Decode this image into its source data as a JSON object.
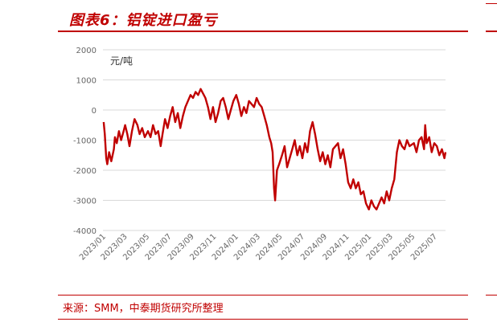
{
  "header": {
    "title": "图表6：铝锭进口盈亏"
  },
  "footer": {
    "source": "来源：SMM，中泰期货研究所整理"
  },
  "chart_data": {
    "type": "line",
    "title": "图表6：铝锭进口盈亏",
    "ylabel": "元/吨",
    "xlabel": "",
    "ylim": [
      -4000,
      2000
    ],
    "yticks": [
      2000,
      1000,
      0,
      -1000,
      -2000,
      -3000,
      -4000
    ],
    "xlim": [
      "2023-01",
      "2025-08"
    ],
    "xtick_labels": [
      "2023/01",
      "2023/03",
      "2023/05",
      "2023/07",
      "2023/09",
      "2023/11",
      "2024/01",
      "2024/03",
      "2024/05",
      "2024/07",
      "2024/09",
      "2024/11",
      "2025/01",
      "2025/03",
      "2025/05",
      "2025/07"
    ],
    "grid": "horizontal",
    "legend": "none",
    "color": "#c00000",
    "series": [
      {
        "values": [
          {
            "x": "2023-01-03",
            "y": -400
          },
          {
            "x": "2023-01-06",
            "y": -800
          },
          {
            "x": "2023-01-10",
            "y": -1600
          },
          {
            "x": "2023-01-13",
            "y": -1800
          },
          {
            "x": "2023-01-18",
            "y": -1400
          },
          {
            "x": "2023-01-24",
            "y": -1700
          },
          {
            "x": "2023-01-31",
            "y": -1300
          },
          {
            "x": "2023-02-03",
            "y": -900
          },
          {
            "x": "2023-02-08",
            "y": -1100
          },
          {
            "x": "2023-02-14",
            "y": -700
          },
          {
            "x": "2023-02-20",
            "y": -1000
          },
          {
            "x": "2023-02-27",
            "y": -700
          },
          {
            "x": "2023-03-03",
            "y": -500
          },
          {
            "x": "2023-03-09",
            "y": -800
          },
          {
            "x": "2023-03-15",
            "y": -1200
          },
          {
            "x": "2023-03-22",
            "y": -700
          },
          {
            "x": "2023-03-29",
            "y": -300
          },
          {
            "x": "2023-04-06",
            "y": -500
          },
          {
            "x": "2023-04-12",
            "y": -800
          },
          {
            "x": "2023-04-19",
            "y": -600
          },
          {
            "x": "2023-04-26",
            "y": -900
          },
          {
            "x": "2023-05-05",
            "y": -700
          },
          {
            "x": "2023-05-12",
            "y": -900
          },
          {
            "x": "2023-05-19",
            "y": -500
          },
          {
            "x": "2023-05-26",
            "y": -800
          },
          {
            "x": "2023-06-02",
            "y": -700
          },
          {
            "x": "2023-06-09",
            "y": -1200
          },
          {
            "x": "2023-06-14",
            "y": -800
          },
          {
            "x": "2023-06-21",
            "y": -300
          },
          {
            "x": "2023-06-28",
            "y": -600
          },
          {
            "x": "2023-07-05",
            "y": -200
          },
          {
            "x": "2023-07-12",
            "y": 100
          },
          {
            "x": "2023-07-19",
            "y": -400
          },
          {
            "x": "2023-07-26",
            "y": -100
          },
          {
            "x": "2023-08-02",
            "y": -600
          },
          {
            "x": "2023-08-09",
            "y": -200
          },
          {
            "x": "2023-08-16",
            "y": 100
          },
          {
            "x": "2023-08-23",
            "y": 300
          },
          {
            "x": "2023-08-30",
            "y": 500
          },
          {
            "x": "2023-09-06",
            "y": 400
          },
          {
            "x": "2023-09-13",
            "y": 600
          },
          {
            "x": "2023-09-20",
            "y": 500
          },
          {
            "x": "2023-09-27",
            "y": 700
          },
          {
            "x": "2023-10-10",
            "y": 400
          },
          {
            "x": "2023-10-17",
            "y": 100
          },
          {
            "x": "2023-10-24",
            "y": -300
          },
          {
            "x": "2023-10-31",
            "y": 100
          },
          {
            "x": "2023-11-07",
            "y": -400
          },
          {
            "x": "2023-11-14",
            "y": -100
          },
          {
            "x": "2023-11-21",
            "y": 300
          },
          {
            "x": "2023-11-28",
            "y": 400
          },
          {
            "x": "2023-12-05",
            "y": 100
          },
          {
            "x": "2023-12-12",
            "y": -300
          },
          {
            "x": "2023-12-19",
            "y": 0
          },
          {
            "x": "2023-12-26",
            "y": 300
          },
          {
            "x": "2024-01-03",
            "y": 500
          },
          {
            "x": "2024-01-10",
            "y": 200
          },
          {
            "x": "2024-01-17",
            "y": -200
          },
          {
            "x": "2024-01-24",
            "y": 100
          },
          {
            "x": "2024-01-31",
            "y": -100
          },
          {
            "x": "2024-02-07",
            "y": 300
          },
          {
            "x": "2024-02-21",
            "y": 100
          },
          {
            "x": "2024-02-28",
            "y": 400
          },
          {
            "x": "2024-03-06",
            "y": 200
          },
          {
            "x": "2024-03-13",
            "y": 100
          },
          {
            "x": "2024-03-20",
            "y": -200
          },
          {
            "x": "2024-03-27",
            "y": -500
          },
          {
            "x": "2024-04-03",
            "y": -900
          },
          {
            "x": "2024-04-08",
            "y": -1100
          },
          {
            "x": "2024-04-12",
            "y": -1400
          },
          {
            "x": "2024-04-16",
            "y": -2600
          },
          {
            "x": "2024-04-19",
            "y": -3000
          },
          {
            "x": "2024-04-24",
            "y": -2000
          },
          {
            "x": "2024-04-30",
            "y": -1800
          },
          {
            "x": "2024-05-08",
            "y": -1500
          },
          {
            "x": "2024-05-15",
            "y": -1200
          },
          {
            "x": "2024-05-22",
            "y": -1900
          },
          {
            "x": "2024-05-29",
            "y": -1600
          },
          {
            "x": "2024-06-05",
            "y": -1300
          },
          {
            "x": "2024-06-12",
            "y": -1000
          },
          {
            "x": "2024-06-19",
            "y": -1500
          },
          {
            "x": "2024-06-26",
            "y": -1200
          },
          {
            "x": "2024-07-03",
            "y": -1600
          },
          {
            "x": "2024-07-10",
            "y": -1100
          },
          {
            "x": "2024-07-17",
            "y": -1400
          },
          {
            "x": "2024-07-24",
            "y": -700
          },
          {
            "x": "2024-07-31",
            "y": -400
          },
          {
            "x": "2024-08-07",
            "y": -800
          },
          {
            "x": "2024-08-14",
            "y": -1300
          },
          {
            "x": "2024-08-21",
            "y": -1700
          },
          {
            "x": "2024-08-28",
            "y": -1400
          },
          {
            "x": "2024-09-04",
            "y": -1800
          },
          {
            "x": "2024-09-11",
            "y": -1500
          },
          {
            "x": "2024-09-18",
            "y": -1900
          },
          {
            "x": "2024-09-25",
            "y": -1300
          },
          {
            "x": "2024-10-09",
            "y": -1100
          },
          {
            "x": "2024-10-16",
            "y": -1600
          },
          {
            "x": "2024-10-23",
            "y": -1300
          },
          {
            "x": "2024-10-30",
            "y": -1800
          },
          {
            "x": "2024-11-06",
            "y": -2400
          },
          {
            "x": "2024-11-13",
            "y": -2600
          },
          {
            "x": "2024-11-20",
            "y": -2300
          },
          {
            "x": "2024-11-27",
            "y": -2600
          },
          {
            "x": "2024-12-04",
            "y": -2400
          },
          {
            "x": "2024-12-11",
            "y": -2800
          },
          {
            "x": "2024-12-18",
            "y": -2700
          },
          {
            "x": "2024-12-25",
            "y": -3100
          },
          {
            "x": "2025-01-02",
            "y": -3300
          },
          {
            "x": "2025-01-09",
            "y": -3000
          },
          {
            "x": "2025-01-16",
            "y": -3200
          },
          {
            "x": "2025-01-23",
            "y": -3300
          },
          {
            "x": "2025-02-06",
            "y": -2900
          },
          {
            "x": "2025-02-13",
            "y": -3100
          },
          {
            "x": "2025-02-20",
            "y": -2700
          },
          {
            "x": "2025-02-27",
            "y": -3000
          },
          {
            "x": "2025-03-06",
            "y": -2600
          },
          {
            "x": "2025-03-13",
            "y": -2300
          },
          {
            "x": "2025-03-20",
            "y": -1400
          },
          {
            "x": "2025-03-27",
            "y": -1000
          },
          {
            "x": "2025-04-03",
            "y": -1200
          },
          {
            "x": "2025-04-10",
            "y": -1300
          },
          {
            "x": "2025-04-17",
            "y": -1000
          },
          {
            "x": "2025-04-24",
            "y": -1200
          },
          {
            "x": "2025-05-06",
            "y": -1100
          },
          {
            "x": "2025-05-13",
            "y": -1400
          },
          {
            "x": "2025-05-20",
            "y": -1000
          },
          {
            "x": "2025-05-27",
            "y": -900
          },
          {
            "x": "2025-06-03",
            "y": -1300
          },
          {
            "x": "2025-06-06",
            "y": -500
          },
          {
            "x": "2025-06-10",
            "y": -1100
          },
          {
            "x": "2025-06-17",
            "y": -900
          },
          {
            "x": "2025-06-24",
            "y": -1400
          },
          {
            "x": "2025-07-01",
            "y": -1100
          },
          {
            "x": "2025-07-08",
            "y": -1200
          },
          {
            "x": "2025-07-15",
            "y": -1500
          },
          {
            "x": "2025-07-22",
            "y": -1300
          },
          {
            "x": "2025-07-29",
            "y": -1600
          },
          {
            "x": "2025-08-01",
            "y": -1400
          }
        ]
      }
    ]
  }
}
